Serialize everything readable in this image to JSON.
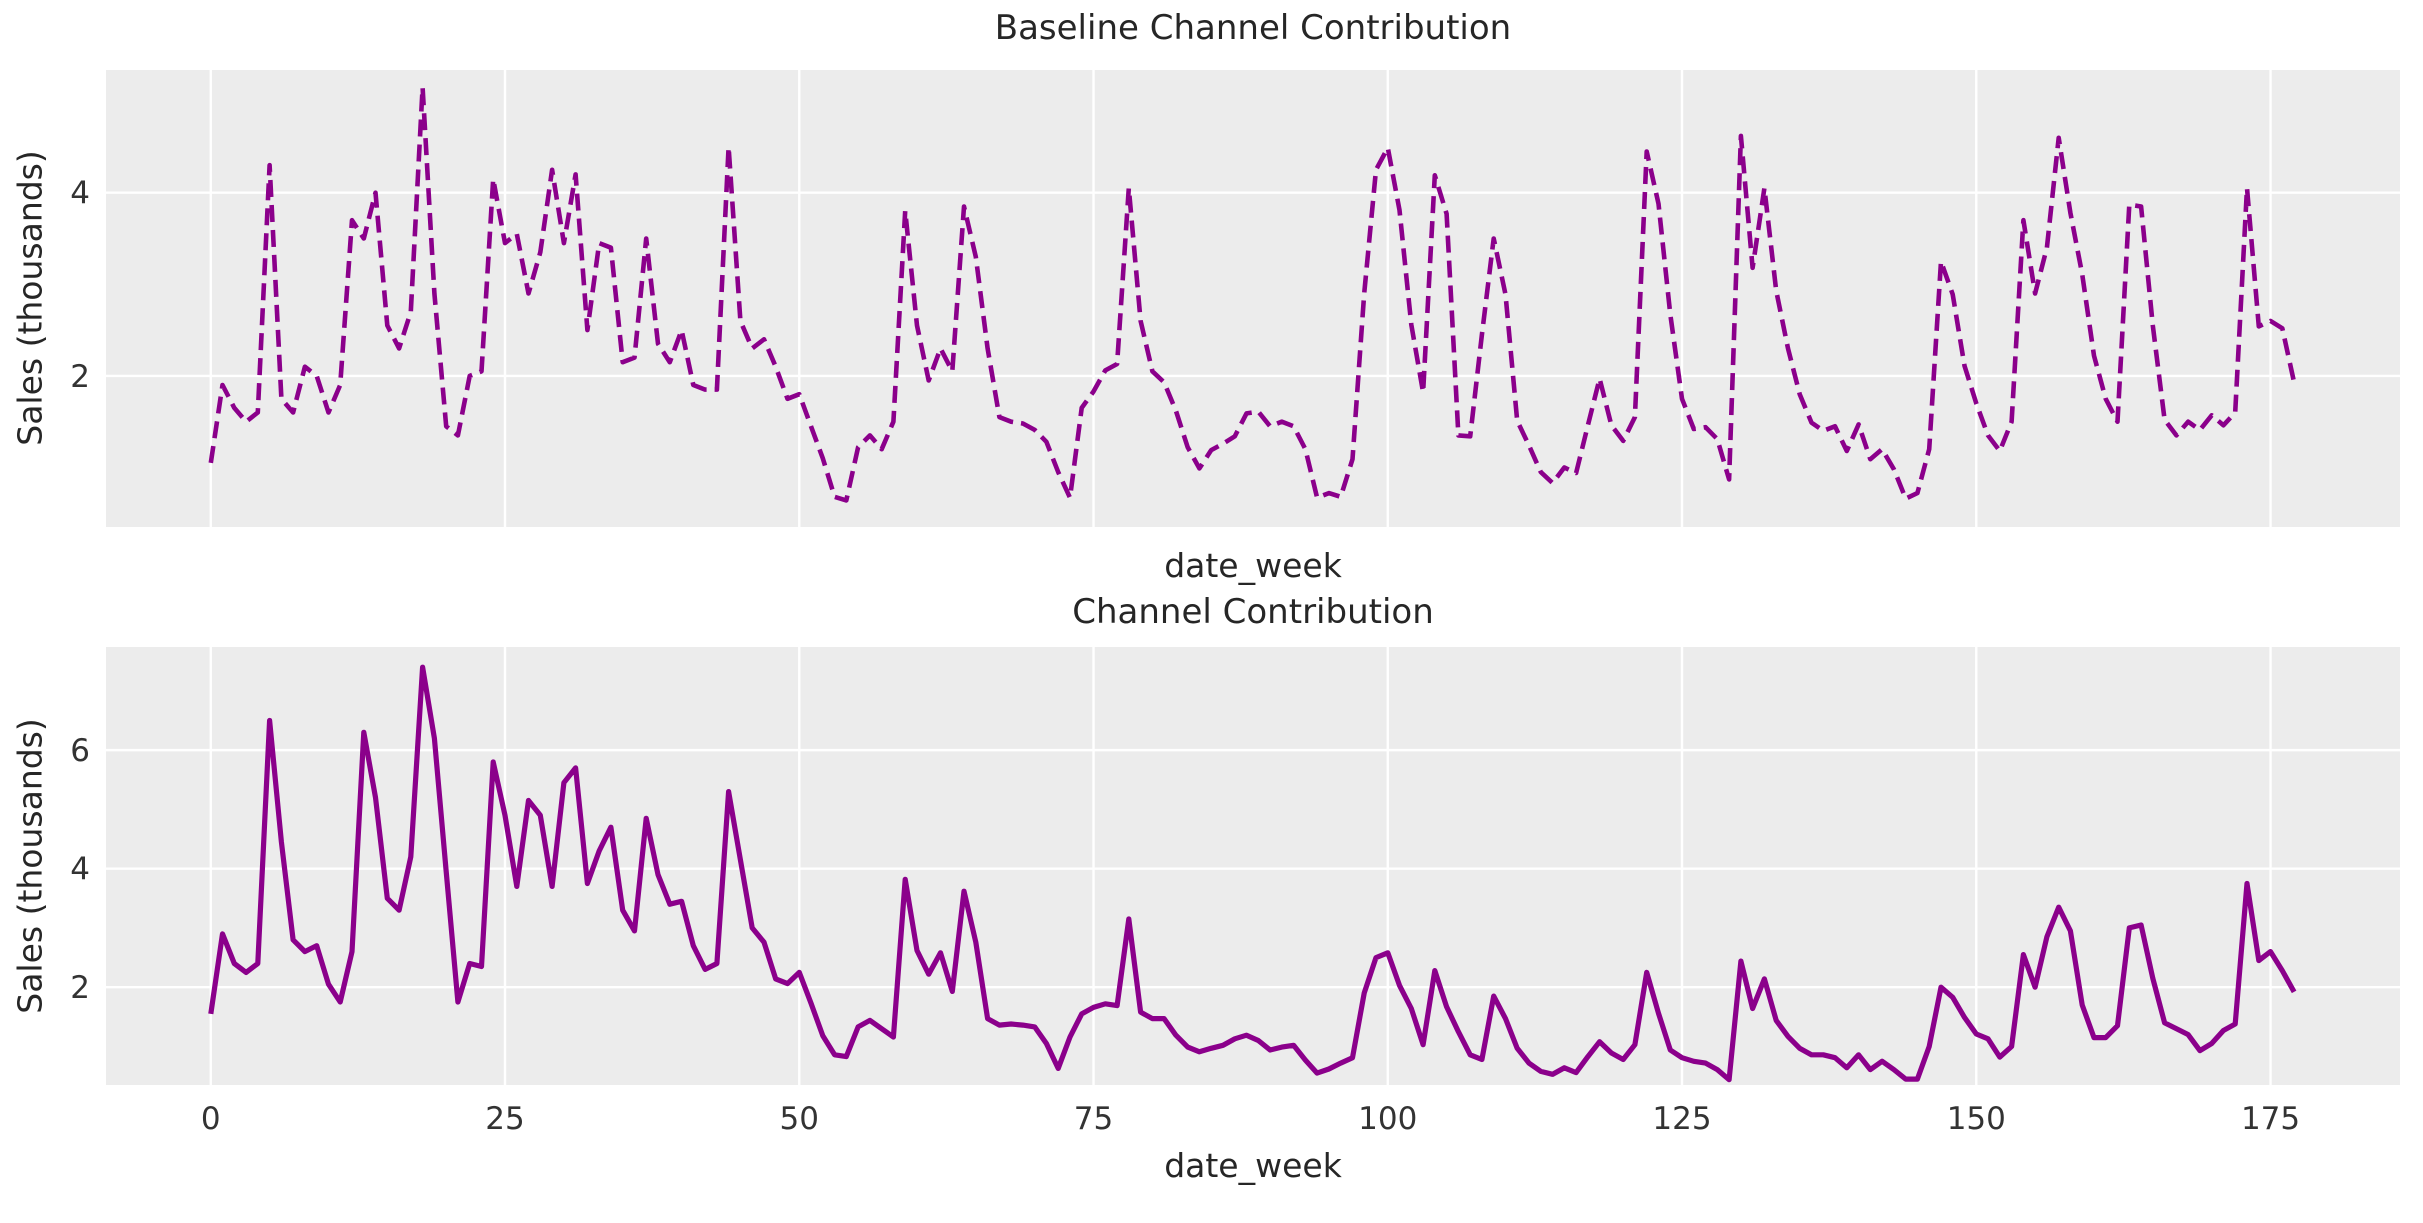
{
  "figure": {
    "top_title": "Baseline Channel Contribution",
    "bottom_title": "Channel Contribution",
    "xlabel_top": "date_week",
    "xlabel_bottom": "date_week",
    "ylabel_top": "Sales (thousands)",
    "ylabel_bottom": "Sales (thousands)",
    "line_color": "#8B008B",
    "plot_bg_color": "#ECECEC",
    "grid_color": "#FFFFFF",
    "text_color": "#262626"
  },
  "chart_data": [
    {
      "type": "line",
      "title": "Baseline Channel Contribution",
      "xlabel": "date_week",
      "ylabel": "Sales (thousands)",
      "line_style": "dashed",
      "x_start": 0,
      "x_step": 1,
      "xlim": [
        -8.9,
        186.0
      ],
      "ylim": [
        0.35,
        5.34
      ],
      "xticks": [
        0,
        25,
        50,
        75,
        100,
        125,
        150,
        175
      ],
      "xtick_labels_visible": false,
      "yticks": [
        2,
        4
      ],
      "grid": true,
      "legend": "none",
      "values": [
        1.05,
        1.9,
        1.65,
        1.5,
        1.6,
        4.3,
        1.75,
        1.6,
        2.1,
        2.0,
        1.6,
        1.9,
        3.7,
        3.5,
        4.0,
        2.55,
        2.3,
        2.7,
        5.15,
        2.9,
        1.45,
        1.35,
        2.0,
        2.05,
        4.15,
        3.45,
        3.55,
        2.9,
        3.35,
        4.25,
        3.45,
        4.2,
        2.5,
        3.45,
        3.4,
        2.15,
        2.2,
        3.5,
        2.35,
        2.15,
        2.5,
        1.9,
        1.85,
        1.85,
        4.5,
        2.6,
        2.3,
        2.4,
        2.1,
        1.75,
        1.8,
        1.45,
        1.1,
        0.68,
        0.64,
        1.22,
        1.35,
        1.2,
        1.5,
        3.8,
        2.55,
        1.95,
        2.3,
        2.05,
        3.85,
        3.3,
        2.3,
        1.55,
        1.5,
        1.48,
        1.41,
        1.28,
        0.95,
        0.67,
        1.65,
        1.83,
        2.06,
        2.13,
        4.05,
        2.6,
        2.05,
        1.93,
        1.62,
        1.22,
        0.99,
        1.19,
        1.26,
        1.34,
        1.59,
        1.61,
        1.45,
        1.5,
        1.45,
        1.2,
        0.67,
        0.72,
        0.68,
        1.09,
        2.9,
        4.25,
        4.49,
        3.81,
        2.56,
        1.82,
        4.19,
        3.77,
        1.35,
        1.34,
        2.45,
        3.5,
        2.89,
        1.51,
        1.24,
        0.95,
        0.83,
        1.0,
        0.94,
        1.46,
        1.97,
        1.46,
        1.29,
        1.55,
        4.45,
        3.88,
        2.67,
        1.75,
        1.42,
        1.44,
        1.31,
        0.87,
        4.62,
        3.18,
        4.05,
        2.93,
        2.3,
        1.8,
        1.49,
        1.4,
        1.45,
        1.18,
        1.47,
        1.09,
        1.2,
        0.98,
        0.66,
        0.72,
        1.2,
        3.25,
        2.89,
        2.11,
        1.7,
        1.35,
        1.18,
        1.5,
        3.7,
        2.9,
        3.4,
        4.6,
        3.78,
        3.11,
        2.22,
        1.75,
        1.5,
        3.87,
        3.85,
        2.55,
        1.52,
        1.35,
        1.5,
        1.41,
        1.57,
        1.46,
        1.6,
        4.05,
        2.54,
        2.6,
        2.52,
        1.93
      ]
    },
    {
      "type": "line",
      "title": "Channel Contribution",
      "xlabel": "date_week",
      "ylabel": "Sales (thousands)",
      "line_style": "solid",
      "x_start": 0,
      "x_step": 1,
      "xlim": [
        -8.9,
        186.0
      ],
      "ylim": [
        0.35,
        7.74
      ],
      "xticks": [
        0,
        25,
        50,
        75,
        100,
        125,
        150,
        175
      ],
      "xtick_labels_visible": true,
      "yticks": [
        2,
        4,
        6
      ],
      "grid": true,
      "legend": "none",
      "values": [
        1.55,
        2.9,
        2.4,
        2.25,
        2.4,
        6.5,
        4.45,
        2.8,
        2.6,
        2.7,
        2.05,
        1.75,
        2.6,
        6.3,
        5.2,
        3.5,
        3.3,
        4.2,
        7.4,
        6.2,
        3.95,
        1.75,
        2.4,
        2.35,
        5.8,
        4.9,
        3.7,
        5.15,
        4.9,
        3.7,
        5.45,
        5.7,
        3.75,
        4.3,
        4.7,
        3.3,
        2.95,
        4.85,
        3.9,
        3.4,
        3.45,
        2.7,
        2.3,
        2.4,
        5.3,
        4.15,
        3.0,
        2.76,
        2.14,
        2.06,
        2.25,
        1.73,
        1.18,
        0.86,
        0.83,
        1.33,
        1.44,
        1.3,
        1.16,
        3.82,
        2.62,
        2.22,
        2.58,
        1.93,
        3.62,
        2.76,
        1.47,
        1.36,
        1.38,
        1.36,
        1.33,
        1.05,
        0.63,
        1.16,
        1.55,
        1.66,
        1.72,
        1.69,
        3.15,
        1.58,
        1.47,
        1.47,
        1.19,
        0.99,
        0.91,
        0.97,
        1.02,
        1.13,
        1.19,
        1.1,
        0.94,
        0.99,
        1.02,
        0.77,
        0.55,
        0.62,
        0.72,
        0.81,
        1.9,
        2.5,
        2.58,
        2.03,
        1.64,
        1.03,
        2.28,
        1.67,
        1.25,
        0.86,
        0.78,
        1.85,
        1.47,
        0.97,
        0.72,
        0.58,
        0.53,
        0.64,
        0.56,
        0.83,
        1.08,
        0.89,
        0.78,
        1.03,
        2.25,
        1.56,
        0.94,
        0.81,
        0.75,
        0.72,
        0.61,
        0.44,
        2.44,
        1.64,
        2.14,
        1.44,
        1.17,
        0.97,
        0.86,
        0.86,
        0.81,
        0.64,
        0.86,
        0.61,
        0.75,
        0.61,
        0.45,
        0.45,
        1.0,
        2.0,
        1.83,
        1.49,
        1.21,
        1.13,
        0.82,
        1.0,
        2.55,
        2.0,
        2.85,
        3.35,
        2.95,
        1.7,
        1.15,
        1.15,
        1.35,
        3.0,
        3.05,
        2.15,
        1.4,
        1.3,
        1.2,
        0.93,
        1.05,
        1.27,
        1.38,
        3.75,
        2.45,
        2.6,
        2.28,
        1.92
      ]
    }
  ]
}
